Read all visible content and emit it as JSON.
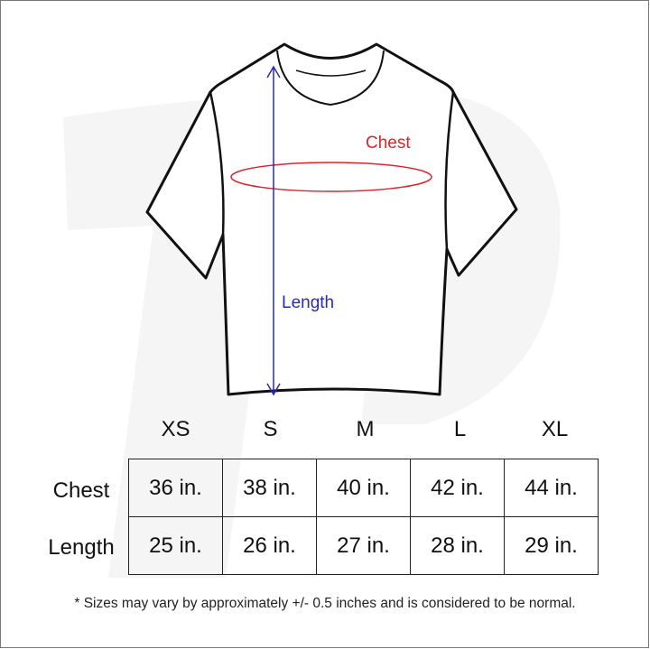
{
  "diagram": {
    "chest_label": "Chest",
    "length_label": "Length",
    "chest_color": "#d9262b",
    "length_color": "#2a2ab8"
  },
  "table": {
    "sizes": [
      "XS",
      "S",
      "M",
      "L",
      "XL"
    ],
    "rows": [
      {
        "label": "Chest",
        "values": [
          "36 in.",
          "38 in.",
          "40 in.",
          "42 in.",
          "44 in."
        ]
      },
      {
        "label": "Length",
        "values": [
          "25 in.",
          "26 in.",
          "27 in.",
          "28 in.",
          "29 in."
        ]
      }
    ]
  },
  "footnote": "* Sizes may vary by approximately +/- 0.5 inches and is considered to be normal."
}
